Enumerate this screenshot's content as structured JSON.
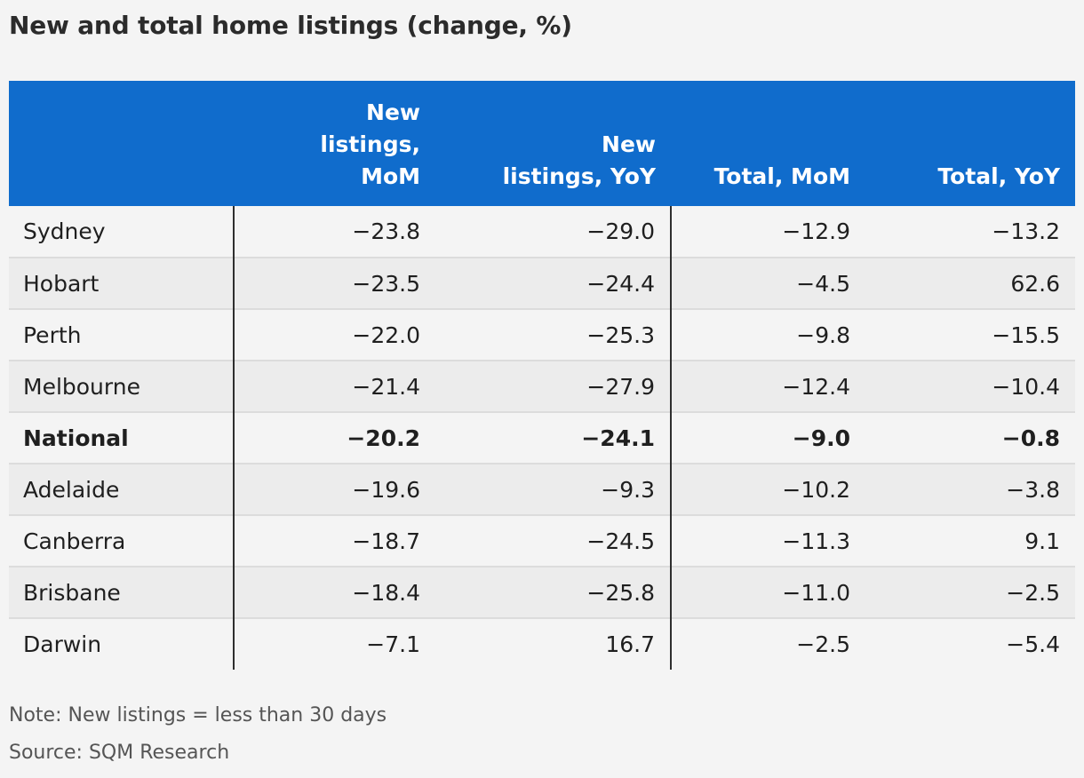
{
  "title": "New and total home listings (change, %)",
  "chart_data": {
    "type": "table",
    "columns": [
      "",
      "New listings, MoM",
      "New listings, YoY",
      "Total, MoM",
      "Total, YoY"
    ],
    "header_lines": [
      "",
      "New\nlistings,\nMoM",
      "New\nlistings, YoY",
      "Total, MoM",
      "Total, YoY"
    ],
    "rows": [
      {
        "region": "Sydney",
        "values": [
          "−23.8",
          "−29.0",
          "−12.9",
          "−13.2"
        ],
        "bold": false
      },
      {
        "region": "Hobart",
        "values": [
          "−23.5",
          "−24.4",
          "−4.5",
          "62.6"
        ],
        "bold": false
      },
      {
        "region": "Perth",
        "values": [
          "−22.0",
          "−25.3",
          "−9.8",
          "−15.5"
        ],
        "bold": false
      },
      {
        "region": "Melbourne",
        "values": [
          "−21.4",
          "−27.9",
          "−12.4",
          "−10.4"
        ],
        "bold": false
      },
      {
        "region": "National",
        "values": [
          "−20.2",
          "−24.1",
          "−9.0",
          "−0.8"
        ],
        "bold": true
      },
      {
        "region": "Adelaide",
        "values": [
          "−19.6",
          "−9.3",
          "−10.2",
          "−3.8"
        ],
        "bold": false
      },
      {
        "region": "Canberra",
        "values": [
          "−18.7",
          "−24.5",
          "−11.3",
          "9.1"
        ],
        "bold": false
      },
      {
        "region": "Brisbane",
        "values": [
          "−18.4",
          "−25.8",
          "−11.0",
          "−2.5"
        ],
        "bold": false
      },
      {
        "region": "Darwin",
        "values": [
          "−7.1",
          "16.7",
          "−2.5",
          "−5.4"
        ],
        "bold": false
      }
    ]
  },
  "note": "Note: New listings = less than 30 days",
  "source": "Source: SQM Research",
  "colors": {
    "header_bg": "#106ccc",
    "header_text": "#ffffff",
    "row_bg": "#f4f4f4",
    "row_alt_bg": "#ececec",
    "text": "#1f1f1f",
    "muted_text": "#555555"
  }
}
